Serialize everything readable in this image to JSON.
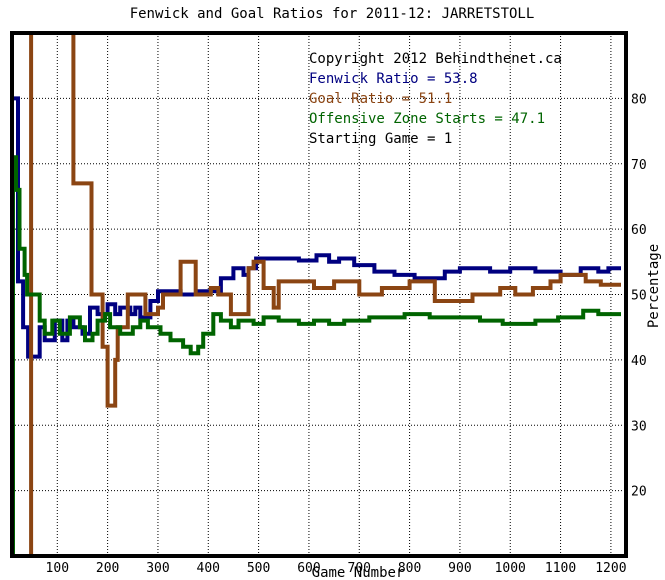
{
  "chart_data": {
    "type": "line",
    "title": "Fenwick and Goal Ratios for 2011-12: JARRETSTOLL",
    "xlabel": "Game Number",
    "ylabel": "Percentage",
    "xlim": [
      10,
      1230
    ],
    "ylim": [
      10,
      90
    ],
    "x_ticks": [
      100,
      200,
      300,
      400,
      500,
      600,
      700,
      800,
      900,
      1000,
      1100,
      1200
    ],
    "y_ticks": [
      20,
      30,
      40,
      50,
      60,
      70,
      80
    ],
    "grid": true,
    "legend_position": "top-right",
    "annotations": [
      {
        "text": "Copyright 2012 Behindthenet.ca",
        "color": "#000000"
      },
      {
        "text": "Fenwick Ratio = 53.8",
        "color": "#000080"
      },
      {
        "text": "Goal Ratio = 51.1",
        "color": "#8b4513"
      },
      {
        "text": "Offensive Zone Starts = 47.1",
        "color": "#006400"
      },
      {
        "text": "Starting Game = 1",
        "color": "#000000"
      }
    ],
    "series": [
      {
        "name": "Fenwick Ratio",
        "color": "#000080",
        "points": [
          [
            12,
            80
          ],
          [
            22,
            80
          ],
          [
            22,
            52
          ],
          [
            32,
            52
          ],
          [
            32,
            45
          ],
          [
            42,
            45
          ],
          [
            42,
            40.5
          ],
          [
            65,
            40.5
          ],
          [
            65,
            45
          ],
          [
            75,
            45
          ],
          [
            75,
            43
          ],
          [
            95,
            43
          ],
          [
            95,
            46
          ],
          [
            110,
            46
          ],
          [
            110,
            43
          ],
          [
            120,
            43
          ],
          [
            120,
            46
          ],
          [
            132,
            46
          ],
          [
            132,
            45
          ],
          [
            150,
            45
          ],
          [
            150,
            44
          ],
          [
            165,
            44
          ],
          [
            165,
            48
          ],
          [
            180,
            48
          ],
          [
            180,
            47
          ],
          [
            200,
            47
          ],
          [
            200,
            48.5
          ],
          [
            215,
            48.5
          ],
          [
            215,
            47
          ],
          [
            225,
            47
          ],
          [
            225,
            48
          ],
          [
            245,
            48
          ],
          [
            245,
            47
          ],
          [
            255,
            47
          ],
          [
            255,
            48
          ],
          [
            265,
            48
          ],
          [
            265,
            46.5
          ],
          [
            285,
            46.5
          ],
          [
            285,
            49
          ],
          [
            300,
            49
          ],
          [
            300,
            50.5
          ],
          [
            345,
            50.5
          ],
          [
            345,
            50
          ],
          [
            380,
            50
          ],
          [
            380,
            50.5
          ],
          [
            425,
            50.5
          ],
          [
            425,
            52.5
          ],
          [
            450,
            52.5
          ],
          [
            450,
            54
          ],
          [
            470,
            54
          ],
          [
            470,
            53
          ],
          [
            480,
            53
          ],
          [
            480,
            54
          ],
          [
            495,
            54
          ],
          [
            495,
            55.5
          ],
          [
            580,
            55.5
          ],
          [
            580,
            55.2
          ],
          [
            615,
            55.2
          ],
          [
            615,
            56
          ],
          [
            640,
            56
          ],
          [
            640,
            55
          ],
          [
            660,
            55
          ],
          [
            660,
            55.5
          ],
          [
            690,
            55.5
          ],
          [
            690,
            54.5
          ],
          [
            730,
            54.5
          ],
          [
            730,
            53.5
          ],
          [
            770,
            53.5
          ],
          [
            770,
            53
          ],
          [
            810,
            53
          ],
          [
            810,
            52.5
          ],
          [
            870,
            52.5
          ],
          [
            870,
            53.5
          ],
          [
            900,
            53.5
          ],
          [
            900,
            54
          ],
          [
            960,
            54
          ],
          [
            960,
            53.5
          ],
          [
            1000,
            53.5
          ],
          [
            1000,
            54
          ],
          [
            1050,
            54
          ],
          [
            1050,
            53.5
          ],
          [
            1100,
            53.5
          ],
          [
            1100,
            53
          ],
          [
            1140,
            53
          ],
          [
            1140,
            54
          ],
          [
            1175,
            54
          ],
          [
            1175,
            53.5
          ],
          [
            1195,
            53.5
          ],
          [
            1195,
            54
          ],
          [
            1220,
            54
          ]
        ]
      },
      {
        "name": "Goal Ratio",
        "color": "#8b4513",
        "points": [
          [
            48,
            6
          ],
          [
            48,
            100
          ],
          [
            132,
            100
          ],
          [
            132,
            67
          ],
          [
            168,
            67
          ],
          [
            168,
            50
          ],
          [
            190,
            50
          ],
          [
            190,
            42
          ],
          [
            200,
            42
          ],
          [
            200,
            33
          ],
          [
            215,
            33
          ],
          [
            215,
            40
          ],
          [
            220,
            40
          ],
          [
            220,
            45
          ],
          [
            240,
            45
          ],
          [
            240,
            50
          ],
          [
            275,
            50
          ],
          [
            275,
            47
          ],
          [
            300,
            47
          ],
          [
            300,
            48
          ],
          [
            310,
            48
          ],
          [
            310,
            50
          ],
          [
            345,
            50
          ],
          [
            345,
            55
          ],
          [
            375,
            55
          ],
          [
            375,
            50
          ],
          [
            405,
            50
          ],
          [
            405,
            51
          ],
          [
            420,
            51
          ],
          [
            420,
            50
          ],
          [
            445,
            50
          ],
          [
            445,
            47
          ],
          [
            480,
            47
          ],
          [
            480,
            54
          ],
          [
            490,
            54
          ],
          [
            490,
            55
          ],
          [
            510,
            55
          ],
          [
            510,
            51
          ],
          [
            530,
            51
          ],
          [
            530,
            48
          ],
          [
            540,
            48
          ],
          [
            540,
            52
          ],
          [
            610,
            52
          ],
          [
            610,
            51
          ],
          [
            650,
            51
          ],
          [
            650,
            52
          ],
          [
            700,
            52
          ],
          [
            700,
            50
          ],
          [
            745,
            50
          ],
          [
            745,
            51
          ],
          [
            800,
            51
          ],
          [
            800,
            52
          ],
          [
            850,
            52
          ],
          [
            850,
            49
          ],
          [
            925,
            49
          ],
          [
            925,
            50
          ],
          [
            980,
            50
          ],
          [
            980,
            51
          ],
          [
            1010,
            51
          ],
          [
            1010,
            50
          ],
          [
            1045,
            50
          ],
          [
            1045,
            51
          ],
          [
            1080,
            51
          ],
          [
            1080,
            52
          ],
          [
            1100,
            52
          ],
          [
            1100,
            53
          ],
          [
            1150,
            53
          ],
          [
            1150,
            52
          ],
          [
            1180,
            52
          ],
          [
            1180,
            51.5
          ],
          [
            1220,
            51.5
          ]
        ]
      },
      {
        "name": "Offensive Zone Starts",
        "color": "#006400",
        "points": [
          [
            12,
            6
          ],
          [
            12,
            71
          ],
          [
            18,
            71
          ],
          [
            18,
            66
          ],
          [
            25,
            66
          ],
          [
            25,
            57
          ],
          [
            35,
            57
          ],
          [
            35,
            53
          ],
          [
            40,
            53
          ],
          [
            40,
            50
          ],
          [
            65,
            50
          ],
          [
            65,
            46
          ],
          [
            75,
            46
          ],
          [
            75,
            44
          ],
          [
            90,
            44
          ],
          [
            90,
            46
          ],
          [
            105,
            46
          ],
          [
            105,
            44
          ],
          [
            125,
            44
          ],
          [
            125,
            46.5
          ],
          [
            145,
            46.5
          ],
          [
            145,
            45
          ],
          [
            155,
            45
          ],
          [
            155,
            43
          ],
          [
            170,
            43
          ],
          [
            170,
            44
          ],
          [
            180,
            44
          ],
          [
            180,
            46
          ],
          [
            195,
            46
          ],
          [
            195,
            47
          ],
          [
            205,
            47
          ],
          [
            205,
            45
          ],
          [
            225,
            45
          ],
          [
            225,
            44
          ],
          [
            250,
            44
          ],
          [
            250,
            45
          ],
          [
            265,
            45
          ],
          [
            265,
            46
          ],
          [
            280,
            46
          ],
          [
            280,
            45
          ],
          [
            305,
            45
          ],
          [
            305,
            44
          ],
          [
            325,
            44
          ],
          [
            325,
            43
          ],
          [
            350,
            43
          ],
          [
            350,
            42
          ],
          [
            365,
            42
          ],
          [
            365,
            41
          ],
          [
            380,
            41
          ],
          [
            380,
            42
          ],
          [
            390,
            42
          ],
          [
            390,
            44
          ],
          [
            410,
            44
          ],
          [
            410,
            47
          ],
          [
            425,
            47
          ],
          [
            425,
            46
          ],
          [
            445,
            46
          ],
          [
            445,
            45
          ],
          [
            460,
            45
          ],
          [
            460,
            46
          ],
          [
            490,
            46
          ],
          [
            490,
            45.5
          ],
          [
            510,
            45.5
          ],
          [
            510,
            46.5
          ],
          [
            540,
            46.5
          ],
          [
            540,
            46
          ],
          [
            580,
            46
          ],
          [
            580,
            45.5
          ],
          [
            610,
            45.5
          ],
          [
            610,
            46
          ],
          [
            640,
            46
          ],
          [
            640,
            45.5
          ],
          [
            670,
            45.5
          ],
          [
            670,
            46
          ],
          [
            720,
            46
          ],
          [
            720,
            46.5
          ],
          [
            790,
            46.5
          ],
          [
            790,
            47
          ],
          [
            840,
            47
          ],
          [
            840,
            46.5
          ],
          [
            940,
            46.5
          ],
          [
            940,
            46
          ],
          [
            985,
            46
          ],
          [
            985,
            45.5
          ],
          [
            1050,
            45.5
          ],
          [
            1050,
            46
          ],
          [
            1095,
            46
          ],
          [
            1095,
            46.5
          ],
          [
            1145,
            46.5
          ],
          [
            1145,
            47.5
          ],
          [
            1175,
            47.5
          ],
          [
            1175,
            47
          ],
          [
            1220,
            47
          ]
        ]
      }
    ]
  }
}
